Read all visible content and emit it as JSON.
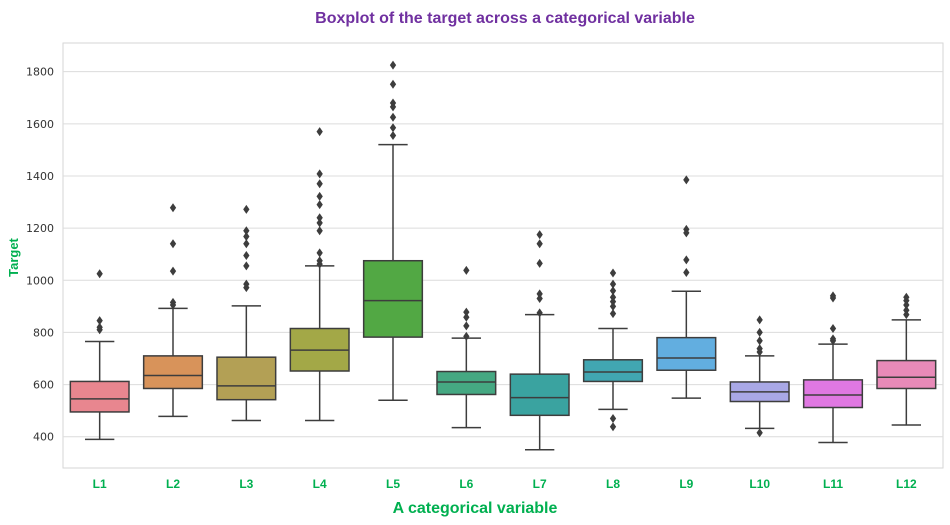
{
  "chart_data": {
    "type": "boxplot",
    "title": "Boxplot of the target across a categorical variable",
    "xlabel": "A categorical variable",
    "ylabel": "Target",
    "ylim": [
      280,
      1910
    ],
    "yticks": [
      400,
      600,
      800,
      1000,
      1200,
      1400,
      1600,
      1800
    ],
    "grid": "horizontal",
    "categories": [
      "L1",
      "L2",
      "L3",
      "L4",
      "L5",
      "L6",
      "L7",
      "L8",
      "L9",
      "L10",
      "L11",
      "L12"
    ],
    "colors": [
      "#e8868f",
      "#d8935a",
      "#b3a055",
      "#a3a847",
      "#52a844",
      "#45a882",
      "#3aa3a0",
      "#41a6b2",
      "#62aee0",
      "#a9a8e6",
      "#e078e2",
      "#e88ab8"
    ],
    "series": [
      {
        "name": "L1",
        "whisker_low": 390,
        "q1": 495,
        "median": 545,
        "q3": 612,
        "whisker_high": 765,
        "outliers": [
          1025,
          845,
          820,
          810
        ]
      },
      {
        "name": "L2",
        "whisker_low": 478,
        "q1": 585,
        "median": 635,
        "q3": 710,
        "whisker_high": 892,
        "outliers": [
          1278,
          1140,
          1035,
          915,
          905
        ]
      },
      {
        "name": "L3",
        "whisker_low": 462,
        "q1": 542,
        "median": 595,
        "q3": 705,
        "whisker_high": 902,
        "outliers": [
          1272,
          1190,
          1168,
          1140,
          1095,
          1055,
          985,
          972
        ]
      },
      {
        "name": "L4",
        "whisker_low": 462,
        "q1": 652,
        "median": 732,
        "q3": 815,
        "whisker_high": 1055,
        "outliers": [
          1570,
          1408,
          1370,
          1322,
          1290,
          1240,
          1220,
          1190,
          1105,
          1075,
          1062
        ]
      },
      {
        "name": "L5",
        "whisker_low": 540,
        "q1": 782,
        "median": 922,
        "q3": 1075,
        "whisker_high": 1520,
        "outliers": [
          1825,
          1752,
          1680,
          1665,
          1625,
          1585,
          1555
        ]
      },
      {
        "name": "L6",
        "whisker_low": 435,
        "q1": 562,
        "median": 610,
        "q3": 650,
        "whisker_high": 778,
        "outliers": [
          1038,
          878,
          858,
          825,
          785
        ]
      },
      {
        "name": "L7",
        "whisker_low": 350,
        "q1": 482,
        "median": 550,
        "q3": 640,
        "whisker_high": 868,
        "outliers": [
          1175,
          1140,
          1065,
          948,
          930,
          875
        ]
      },
      {
        "name": "L8",
        "whisker_low": 505,
        "q1": 612,
        "median": 648,
        "q3": 695,
        "whisker_high": 815,
        "outliers": [
          1028,
          985,
          960,
          935,
          918,
          900,
          872,
          470,
          438
        ]
      },
      {
        "name": "L9",
        "whisker_low": 548,
        "q1": 655,
        "median": 702,
        "q3": 780,
        "whisker_high": 958,
        "outliers": [
          1385,
          1195,
          1182,
          1078,
          1030
        ]
      },
      {
        "name": "L10",
        "whisker_low": 432,
        "q1": 535,
        "median": 572,
        "q3": 610,
        "whisker_high": 710,
        "outliers": [
          848,
          800,
          768,
          738,
          725,
          415
        ]
      },
      {
        "name": "L11",
        "whisker_low": 378,
        "q1": 512,
        "median": 560,
        "q3": 618,
        "whisker_high": 755,
        "outliers": [
          940,
          932,
          815,
          775,
          768
        ]
      },
      {
        "name": "L12",
        "whisker_low": 445,
        "q1": 585,
        "median": 628,
        "q3": 692,
        "whisker_high": 848,
        "outliers": [
          935,
          922,
          905,
          885,
          868
        ]
      }
    ]
  }
}
